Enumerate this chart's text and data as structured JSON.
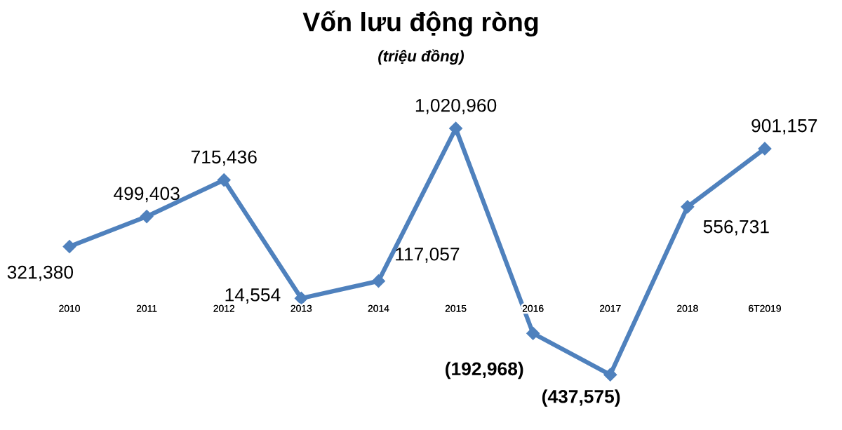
{
  "chart_data": {
    "type": "line",
    "title": "Vốn lưu động ròng",
    "subtitle": "(triệu đồng)",
    "categories": [
      "2010",
      "2011",
      "2012",
      "2013",
      "2014",
      "2015",
      "2016",
      "2017",
      "2018",
      "6T2019"
    ],
    "series": [
      {
        "color": "#4f81bd",
        "values": [
          321380,
          499403,
          715436,
          14554,
          117057,
          1020960,
          -192968,
          -437575,
          556731,
          901157
        ],
        "value_labels": [
          "321,380",
          "499,403",
          "715,436",
          "14,554",
          "117,057",
          "1,020,960",
          "(192,968)",
          "(437,575)",
          "556,731",
          "901,157"
        ]
      }
    ],
    "marker": "diamond",
    "line_style": "solid",
    "grid": false
  }
}
